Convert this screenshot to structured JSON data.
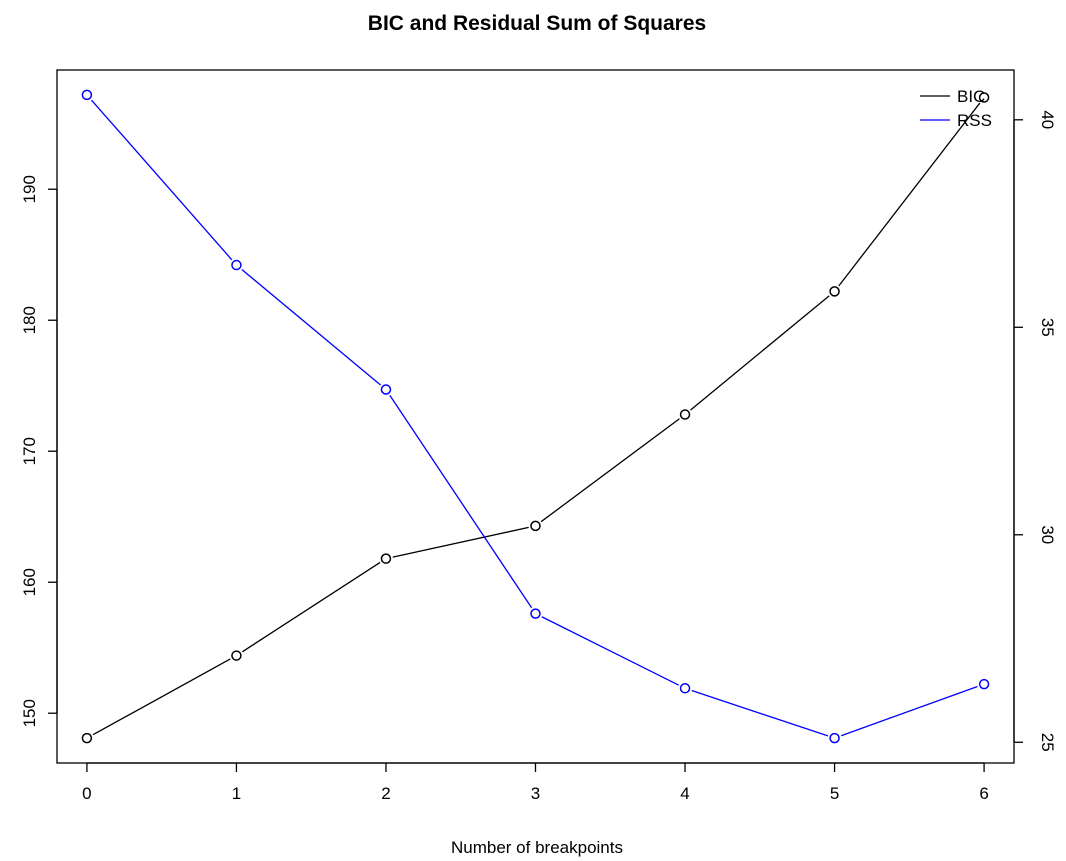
{
  "chart_data": {
    "type": "line",
    "title": "BIC and Residual Sum of Squares",
    "xlabel": "Number of breakpoints",
    "ylabel_left": "",
    "ylabel_right": "",
    "x": [
      0,
      1,
      2,
      3,
      4,
      5,
      6
    ],
    "xlim": [
      -0.2,
      6.2
    ],
    "x_ticks": [
      "0",
      "1",
      "2",
      "3",
      "4",
      "5",
      "6"
    ],
    "series": [
      {
        "name": "BIC",
        "axis": "left",
        "color": "#000000",
        "values": [
          148.1,
          154.4,
          161.8,
          164.3,
          172.8,
          182.2,
          197.0
        ]
      },
      {
        "name": "RSS",
        "axis": "right",
        "color": "#0000ff",
        "values": [
          40.6,
          36.5,
          33.5,
          28.1,
          26.3,
          25.1,
          26.4
        ]
      }
    ],
    "y_left": {
      "lim": [
        146.2,
        199.1
      ],
      "ticks": [
        "150",
        "160",
        "170",
        "180",
        "190"
      ],
      "tick_values": [
        150,
        160,
        170,
        180,
        190
      ]
    },
    "y_right": {
      "lim": [
        24.5,
        41.2
      ],
      "ticks": [
        "25",
        "30",
        "35",
        "40"
      ],
      "tick_values": [
        25,
        30,
        35,
        40
      ]
    },
    "legend": {
      "position": "top-right",
      "entries": [
        "BIC",
        "RSS"
      ]
    },
    "grid": false,
    "marker": "open-circle"
  }
}
